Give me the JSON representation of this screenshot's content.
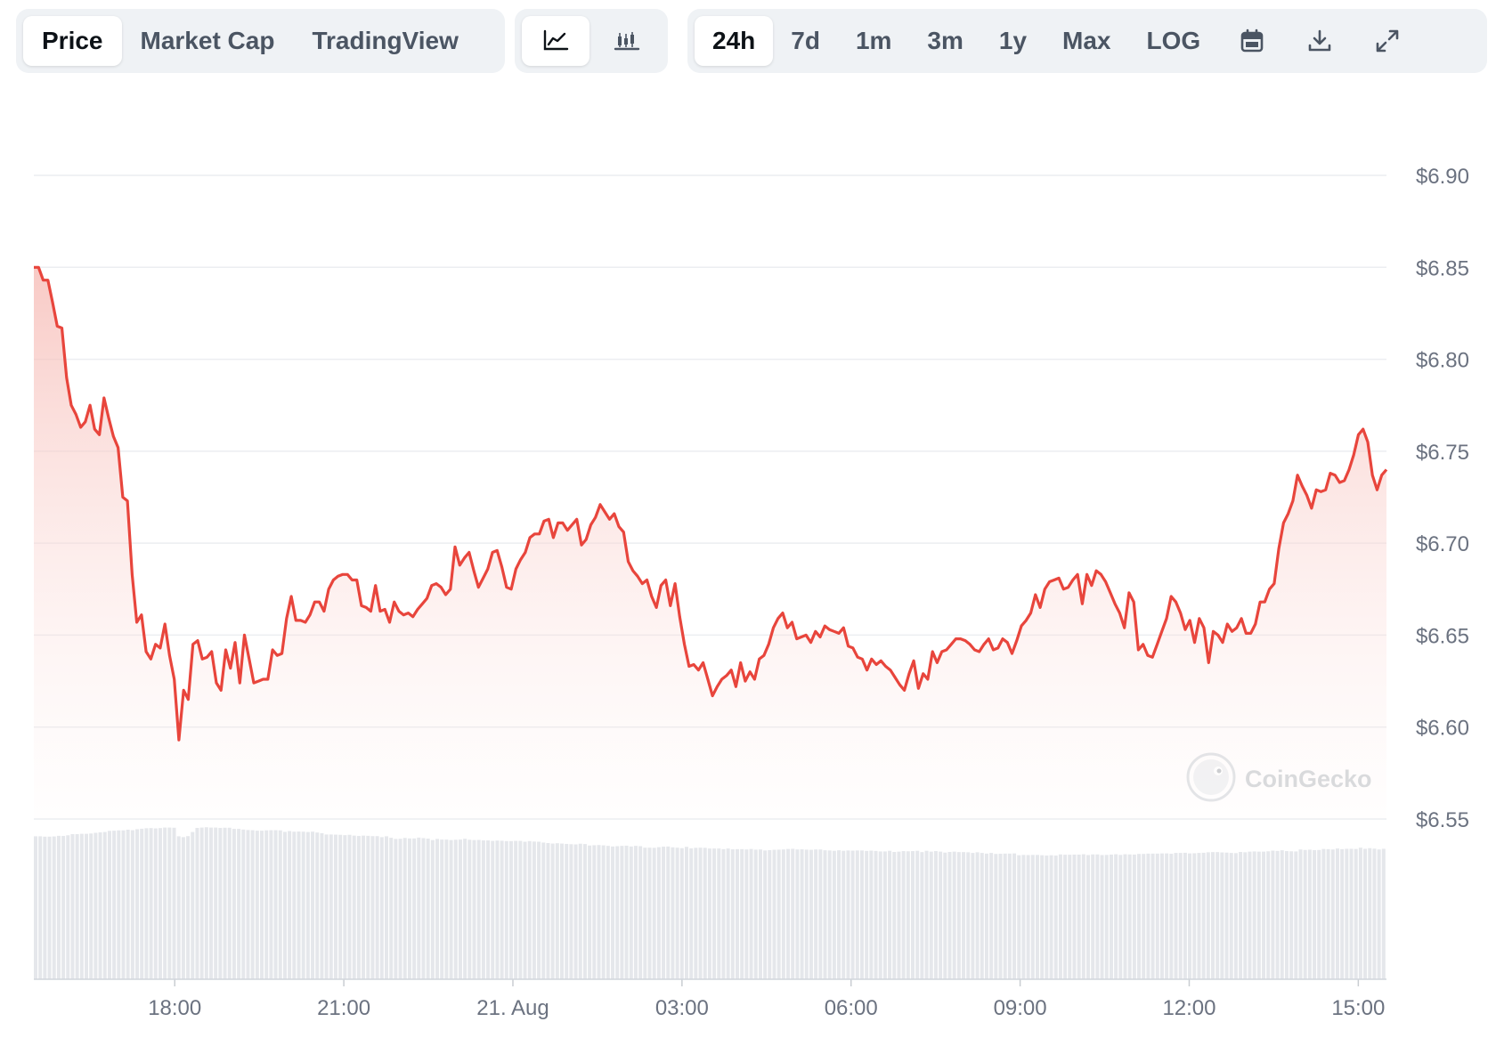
{
  "tabs": {
    "price": "Price",
    "market_cap": "Market Cap",
    "tradingview": "TradingView"
  },
  "chart_type_buttons": {
    "line_icon": "line-chart-icon",
    "candle_icon": "candlestick-icon"
  },
  "ranges": {
    "h24": "24h",
    "d7": "7d",
    "m1": "1m",
    "m3": "3m",
    "y1": "1y",
    "max": "Max",
    "log": "LOG"
  },
  "tool_icons": [
    "calendar-icon",
    "download-icon",
    "expand-icon"
  ],
  "watermark": "CoinGecko",
  "colors": {
    "line": "#e8453c",
    "fill_top": "#f8c9c5",
    "volume": "#e5e7eb",
    "grid": "#eceef1",
    "axis_text": "#6b7280"
  },
  "chart_data": {
    "type": "line",
    "active_range": "24h",
    "y_ticks": [
      "$6.90",
      "$6.85",
      "$6.80",
      "$6.75",
      "$6.70",
      "$6.65",
      "$6.60",
      "$6.55"
    ],
    "y_tick_values": [
      6.9,
      6.85,
      6.8,
      6.75,
      6.7,
      6.65,
      6.6,
      6.55
    ],
    "ylim": [
      6.55,
      6.9
    ],
    "x_ticks": [
      "18:00",
      "21:00",
      "21. Aug",
      "03:00",
      "06:00",
      "09:00",
      "12:00",
      "15:00"
    ],
    "x_tick_hours": [
      2.5,
      5.5,
      8.5,
      11.5,
      14.5,
      17.5,
      20.5,
      23.5
    ],
    "xlim_hours": [
      0,
      24
    ],
    "grid": true,
    "series": [
      {
        "values": [
          6.85,
          6.85,
          6.843,
          6.843,
          6.831,
          6.818,
          6.817,
          6.79,
          6.775,
          6.77,
          6.763,
          6.766,
          6.775,
          6.762,
          6.759,
          6.779,
          6.768,
          6.758,
          6.752,
          6.725,
          6.723,
          6.683,
          6.657,
          6.661,
          6.641,
          6.637,
          6.645,
          6.643,
          6.656,
          6.639,
          6.626,
          6.593,
          6.62,
          6.615,
          6.645,
          6.647,
          6.637,
          6.638,
          6.641,
          6.624,
          6.62,
          6.642,
          6.632,
          6.646,
          6.624,
          6.65,
          6.637,
          6.624,
          6.625,
          6.626,
          6.626,
          6.642,
          6.639,
          6.64,
          6.659,
          6.671,
          6.658,
          6.658,
          6.657,
          6.661,
          6.668,
          6.668,
          6.663,
          6.675,
          6.68,
          6.682,
          6.683,
          6.683,
          6.68,
          6.68,
          6.666,
          6.665,
          6.663,
          6.677,
          6.663,
          6.664,
          6.657,
          6.668,
          6.663,
          6.661,
          6.662,
          6.66,
          6.664,
          6.667,
          6.67,
          6.677,
          6.678,
          6.676,
          6.672,
          6.675,
          6.698,
          6.688,
          6.692,
          6.695,
          6.685,
          6.676,
          6.681,
          6.686,
          6.695,
          6.696,
          6.687,
          6.676,
          6.675,
          6.686,
          6.691,
          6.695,
          6.703,
          6.705,
          6.705,
          6.712,
          6.713,
          6.703,
          6.711,
          6.711,
          6.707,
          6.71,
          6.713,
          6.699,
          6.702,
          6.71,
          6.714,
          6.721,
          6.717,
          6.713,
          6.716,
          6.709,
          6.706,
          6.69,
          6.685,
          6.682,
          6.678,
          6.68,
          6.671,
          6.665,
          6.677,
          6.68,
          6.666,
          6.678,
          6.66,
          6.645,
          6.633,
          6.634,
          6.631,
          6.635,
          6.626,
          6.617,
          6.622,
          6.626,
          6.628,
          6.631,
          6.622,
          6.635,
          6.625,
          6.63,
          6.626,
          6.637,
          6.639,
          6.645,
          6.654,
          6.659,
          6.662,
          6.654,
          6.657,
          6.648,
          6.649,
          6.65,
          6.646,
          6.652,
          6.649,
          6.655,
          6.653,
          6.652,
          6.651,
          6.654,
          6.644,
          6.643,
          6.638,
          6.637,
          6.631,
          6.637,
          6.634,
          6.636,
          6.633,
          6.631,
          6.627,
          6.623,
          6.62,
          6.629,
          6.636,
          6.621,
          6.629,
          6.626,
          6.641,
          6.635,
          6.641,
          6.642,
          6.645,
          6.648,
          6.648,
          6.647,
          6.645,
          6.642,
          6.641,
          6.645,
          6.648,
          6.642,
          6.643,
          6.648,
          6.646,
          6.64,
          6.647,
          6.655,
          6.658,
          6.662,
          6.672,
          6.665,
          6.675,
          6.679,
          6.68,
          6.681,
          6.675,
          6.676,
          6.68,
          6.683,
          6.667,
          6.683,
          6.677,
          6.685,
          6.683,
          6.679,
          6.673,
          6.667,
          6.662,
          6.654,
          6.673,
          6.668,
          6.642,
          6.645,
          6.639,
          6.638,
          6.645,
          6.652,
          6.659,
          6.671,
          6.668,
          6.662,
          6.653,
          6.658,
          6.646,
          6.659,
          6.654,
          6.635,
          6.652,
          6.65,
          6.646,
          6.656,
          6.652,
          6.654,
          6.659,
          6.651,
          6.651,
          6.656,
          6.668,
          6.668,
          6.675,
          6.678,
          6.697,
          6.711,
          6.716,
          6.723,
          6.737,
          6.731,
          6.726,
          6.719,
          6.729,
          6.728,
          6.729,
          6.738,
          6.737,
          6.733,
          6.734,
          6.74,
          6.748,
          6.759,
          6.762,
          6.755,
          6.737,
          6.729,
          6.737,
          6.74
        ]
      }
    ],
    "volume_relative": [
      0.868,
      0.868,
      0.866,
      0.866,
      0.867,
      0.871,
      0.87,
      0.874,
      0.881,
      0.881,
      0.883,
      0.883,
      0.885,
      0.889,
      0.892,
      0.894,
      0.901,
      0.902,
      0.904,
      0.904,
      0.908,
      0.905,
      0.911,
      0.914,
      0.917,
      0.918,
      0.916,
      0.918,
      0.921,
      0.921,
      0.92,
      0.868,
      0.863,
      0.869,
      0.894,
      0.919,
      0.921,
      0.923,
      0.921,
      0.921,
      0.919,
      0.92,
      0.92,
      0.913,
      0.913,
      0.909,
      0.906,
      0.905,
      0.902,
      0.902,
      0.904,
      0.905,
      0.905,
      0.904,
      0.895,
      0.9,
      0.896,
      0.897,
      0.896,
      0.894,
      0.896,
      0.891,
      0.887,
      0.879,
      0.879,
      0.878,
      0.877,
      0.875,
      0.877,
      0.872,
      0.87,
      0.872,
      0.871,
      0.869,
      0.869,
      0.863,
      0.868,
      0.859,
      0.852,
      0.853,
      0.858,
      0.855,
      0.855,
      0.86,
      0.857,
      0.854,
      0.845,
      0.852,
      0.848,
      0.848,
      0.845,
      0.847,
      0.848,
      0.853,
      0.847,
      0.845,
      0.846,
      0.843,
      0.843,
      0.84,
      0.842,
      0.841,
      0.839,
      0.839,
      0.84,
      0.84,
      0.835,
      0.839,
      0.836,
      0.835,
      0.83,
      0.827,
      0.824,
      0.826,
      0.824,
      0.822,
      0.82,
      0.819,
      0.823,
      0.821,
      0.812,
      0.814,
      0.815,
      0.813,
      0.81,
      0.806,
      0.808,
      0.81,
      0.811,
      0.806,
      0.81,
      0.808,
      0.799,
      0.799,
      0.798,
      0.802,
      0.805,
      0.806,
      0.801,
      0.799,
      0.796,
      0.804,
      0.795,
      0.798,
      0.799,
      0.798,
      0.794,
      0.794,
      0.794,
      0.79,
      0.794,
      0.789,
      0.79,
      0.79,
      0.788,
      0.791,
      0.787,
      0.788,
      0.782,
      0.784,
      0.786,
      0.787,
      0.788,
      0.791,
      0.792,
      0.788,
      0.789,
      0.787,
      0.786,
      0.788,
      0.788,
      0.783,
      0.782,
      0.78,
      0.783,
      0.78,
      0.782,
      0.781,
      0.782,
      0.782,
      0.779,
      0.781,
      0.779,
      0.776,
      0.776,
      0.78,
      0.773,
      0.775,
      0.778,
      0.777,
      0.778,
      0.78,
      0.772,
      0.78,
      0.775,
      0.778,
      0.775,
      0.769,
      0.773,
      0.775,
      0.772,
      0.772,
      0.771,
      0.767,
      0.771,
      0.767,
      0.763,
      0.767,
      0.761,
      0.762,
      0.763,
      0.763,
      0.764,
      0.753,
      0.755,
      0.754,
      0.755,
      0.755,
      0.753,
      0.751,
      0.753,
      0.751,
      0.758,
      0.756,
      0.756,
      0.757,
      0.757,
      0.759,
      0.754,
      0.758,
      0.758,
      0.754,
      0.755,
      0.757,
      0.759,
      0.755,
      0.759,
      0.758,
      0.757,
      0.761,
      0.761,
      0.763,
      0.763,
      0.763,
      0.764,
      0.764,
      0.762,
      0.767,
      0.767,
      0.768,
      0.764,
      0.765,
      0.767,
      0.768,
      0.771,
      0.772,
      0.772,
      0.77,
      0.769,
      0.767,
      0.766,
      0.773,
      0.771,
      0.775,
      0.776,
      0.775,
      0.775,
      0.777,
      0.781,
      0.779,
      0.783,
      0.778,
      0.777,
      0.776,
      0.788,
      0.785,
      0.787,
      0.784,
      0.785,
      0.791,
      0.79,
      0.788,
      0.794,
      0.79,
      0.792,
      0.792,
      0.791,
      0.799,
      0.792,
      0.796,
      0.793,
      0.788,
      0.792
    ]
  }
}
